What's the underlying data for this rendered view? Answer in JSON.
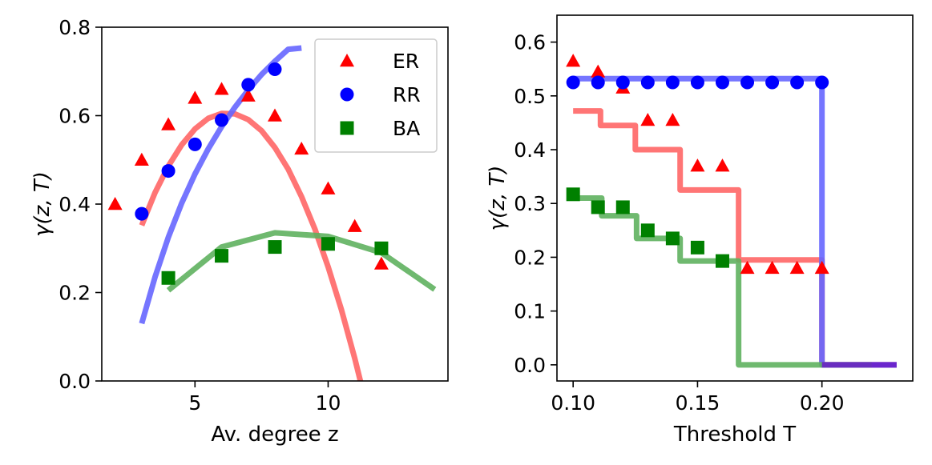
{
  "chart_data": [
    {
      "type": "scatter",
      "xlabel": "Av. degree z",
      "ylabel": "γ(z, T)",
      "xlim": [
        1.5,
        14.5
      ],
      "ylim": [
        0.0,
        0.8
      ],
      "xticks": [
        5,
        10
      ],
      "yticks": [
        0.0,
        0.2,
        0.4,
        0.6,
        0.8
      ],
      "xtick_labels": [
        "5",
        "10"
      ],
      "ytick_labels": [
        "0.0",
        "0.2",
        "0.4",
        "0.6",
        "0.8"
      ],
      "grid": false,
      "legend": {
        "position": "top-right",
        "entries": [
          "ER",
          "RR",
          "BA"
        ]
      },
      "series": [
        {
          "name": "ER",
          "marker": "triangle",
          "color": "#ff0000",
          "x": [
            2,
            3,
            4,
            5,
            6,
            7,
            8,
            9,
            10,
            11,
            12
          ],
          "y": [
            0.4,
            0.5,
            0.58,
            0.64,
            0.66,
            0.645,
            0.6,
            0.525,
            0.435,
            0.35,
            0.265
          ]
        },
        {
          "name": "RR",
          "marker": "circle",
          "color": "#0000ff",
          "x": [
            3,
            4,
            5,
            6,
            7,
            8
          ],
          "y": [
            0.378,
            0.475,
            0.535,
            0.59,
            0.67,
            0.705
          ]
        },
        {
          "name": "BA",
          "marker": "square",
          "color": "#008000",
          "x": [
            4,
            6,
            8,
            10,
            12
          ],
          "y": [
            0.233,
            0.283,
            0.303,
            0.31,
            0.3
          ]
        }
      ],
      "fit_lines": [
        {
          "color": "#ff6666",
          "x": [
            3,
            3.5,
            4,
            4.5,
            5,
            5.5,
            6,
            6.5,
            7,
            7.5,
            8,
            8.5,
            9,
            9.5,
            10,
            10.5,
            11,
            11.5,
            12
          ],
          "y": [
            0.352,
            0.426,
            0.486,
            0.534,
            0.57,
            0.594,
            0.605,
            0.604,
            0.591,
            0.566,
            0.528,
            0.479,
            0.417,
            0.344,
            0.258,
            0.161,
            0.051,
            -0.07,
            -0.2
          ]
        },
        {
          "color": "#6666ff",
          "x": [
            3,
            3.5,
            4,
            4.5,
            5,
            5.5,
            6,
            6.5,
            7,
            7.5,
            8,
            8.5,
            9
          ],
          "y": [
            0.13,
            0.235,
            0.325,
            0.402,
            0.468,
            0.525,
            0.575,
            0.619,
            0.658,
            0.693,
            0.723,
            0.75,
            0.753
          ]
        },
        {
          "color": "#5fb15f",
          "x": [
            4,
            6,
            8,
            10,
            12,
            14
          ],
          "y": [
            0.205,
            0.303,
            0.335,
            0.327,
            0.29,
            0.207
          ]
        }
      ]
    },
    {
      "type": "scatter",
      "xlabel": "Threshold T",
      "ylabel": "γ(z, T)",
      "xlim": [
        0.0935,
        0.2365
      ],
      "ylim": [
        -0.03,
        0.65
      ],
      "xticks": [
        0.1,
        0.15,
        0.2
      ],
      "yticks": [
        0.0,
        0.1,
        0.2,
        0.3,
        0.4,
        0.5,
        0.6
      ],
      "xtick_labels": [
        "0.10",
        "0.15",
        "0.20"
      ],
      "ytick_labels": [
        "0.0",
        "0.1",
        "0.2",
        "0.3",
        "0.4",
        "0.5",
        "0.6"
      ],
      "grid": false,
      "series": [
        {
          "marker": "triangle",
          "color": "#ff0000",
          "x": [
            0.1,
            0.11,
            0.12,
            0.13,
            0.14,
            0.15,
            0.16,
            0.17,
            0.18,
            0.19,
            0.2
          ],
          "y": [
            0.565,
            0.545,
            0.515,
            0.455,
            0.455,
            0.37,
            0.37,
            0.18,
            0.18,
            0.18,
            0.18
          ]
        },
        {
          "marker": "circle",
          "color": "#0000ff",
          "x": [
            0.1,
            0.11,
            0.12,
            0.13,
            0.14,
            0.15,
            0.16,
            0.17,
            0.18,
            0.19,
            0.2
          ],
          "y": [
            0.525,
            0.525,
            0.525,
            0.525,
            0.525,
            0.525,
            0.525,
            0.525,
            0.525,
            0.525,
            0.525
          ]
        },
        {
          "marker": "square",
          "color": "#008000",
          "x": [
            0.1,
            0.11,
            0.12,
            0.13,
            0.14,
            0.15,
            0.16
          ],
          "y": [
            0.317,
            0.293,
            0.293,
            0.25,
            0.235,
            0.218,
            0.193
          ]
        }
      ],
      "fit_lines": [
        {
          "color": "#ff6666",
          "x": [
            0.1,
            0.111,
            0.111,
            0.125,
            0.125,
            0.143,
            0.143,
            0.1665,
            0.1665,
            0.2,
            0.2,
            0.23
          ],
          "y": [
            0.472,
            0.472,
            0.445,
            0.445,
            0.4,
            0.4,
            0.325,
            0.325,
            0.195,
            0.195,
            0.0,
            0.0
          ]
        },
        {
          "color": "#6666ff",
          "x": [
            0.1,
            0.2,
            0.2,
            0.23
          ],
          "y": [
            0.532,
            0.532,
            0.0,
            0.0
          ]
        },
        {
          "color": "#5fb15f",
          "x": [
            0.1,
            0.1115,
            0.1115,
            0.1255,
            0.1255,
            0.143,
            0.143,
            0.1665,
            0.1665,
            0.22
          ],
          "y": [
            0.31,
            0.31,
            0.277,
            0.277,
            0.235,
            0.235,
            0.193,
            0.193,
            0.0,
            0.0
          ]
        },
        {
          "color": "#6a1fc9",
          "x": [
            0.2,
            0.23
          ],
          "y": [
            0.0,
            0.0
          ]
        }
      ]
    }
  ]
}
